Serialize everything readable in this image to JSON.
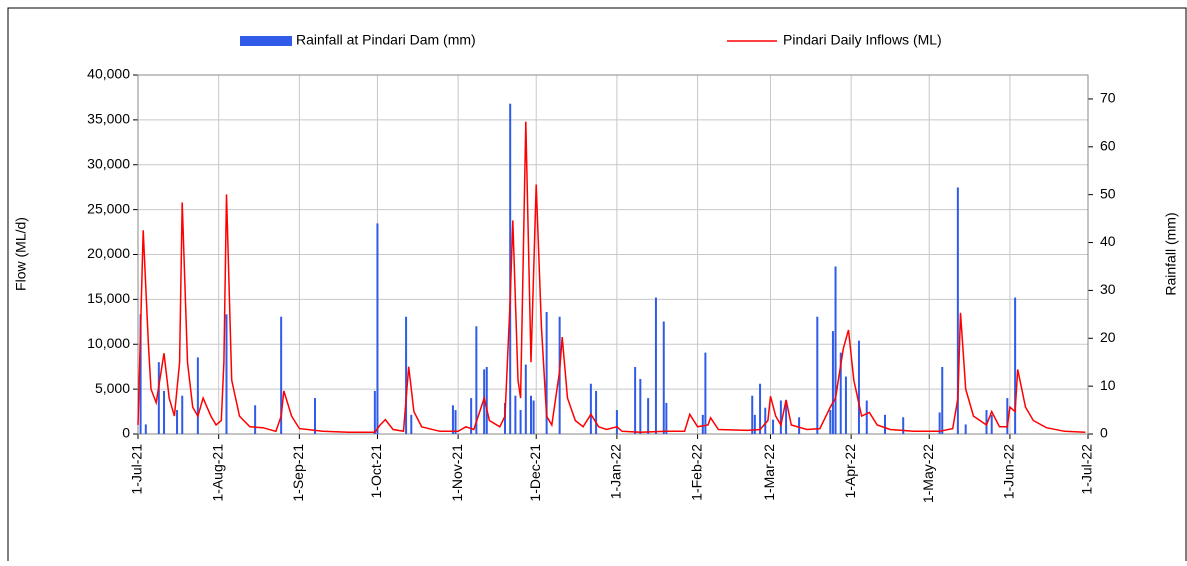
{
  "chart_data": {
    "type": "combo",
    "ylabel": "Flow (ML/d)",
    "y2label": "Rainfall (mm)",
    "ylim": [
      0,
      40000
    ],
    "yticks": [
      0,
      {
        "value": 5000,
        "label": "5,000"
      },
      {
        "value": 10000,
        "label": "10,000"
      },
      {
        "value": 15000,
        "label": "15,000"
      },
      {
        "value": 20000,
        "label": "20,000"
      },
      {
        "value": 25000,
        "label": "25,000"
      },
      {
        "value": 30000,
        "label": "30,000"
      },
      {
        "value": 35000,
        "label": "35,000"
      },
      {
        "value": 40000,
        "label": "40,000"
      }
    ],
    "y2lim": [
      0,
      75
    ],
    "y2ticks": [
      0,
      10,
      20,
      30,
      40,
      50,
      60,
      70
    ],
    "xlim": [
      "2021-07-01",
      "2022-07-01"
    ],
    "xticks": [
      {
        "value": "2021-07-01",
        "label": "1-Jul-21"
      },
      {
        "value": "2021-08-01",
        "label": "1-Aug-21"
      },
      {
        "value": "2021-09-01",
        "label": "1-Sep-21"
      },
      {
        "value": "2021-10-01",
        "label": "1-Oct-21"
      },
      {
        "value": "2021-11-01",
        "label": "1-Nov-21"
      },
      {
        "value": "2021-12-01",
        "label": "1-Dec-21"
      },
      {
        "value": "2022-01-01",
        "label": "1-Jan-22"
      },
      {
        "value": "2022-02-01",
        "label": "1-Feb-22"
      },
      {
        "value": "2022-03-01",
        "label": "1-Mar-22"
      },
      {
        "value": "2022-04-01",
        "label": "1-Apr-22"
      },
      {
        "value": "2022-05-01",
        "label": "1-May-22"
      },
      {
        "value": "2022-06-01",
        "label": "1-Jun-22"
      },
      {
        "value": "2022-07-01",
        "label": "1-Jul-22"
      }
    ],
    "grid": true,
    "legend": "top",
    "series": [
      {
        "name": "Rainfall at Pindari Dam (mm)",
        "type": "bar",
        "axis": "y2",
        "color": "#2f5be8",
        "x": [
          "2021-07-02",
          "2021-07-04",
          "2021-07-09",
          "2021-07-11",
          "2021-07-16",
          "2021-07-18",
          "2021-07-24",
          "2021-08-04",
          "2021-08-15",
          "2021-08-25",
          "2021-09-07",
          "2021-09-30",
          "2021-10-01",
          "2021-10-12",
          "2021-10-14",
          "2021-10-30",
          "2021-10-31",
          "2021-11-06",
          "2021-11-08",
          "2021-11-11",
          "2021-11-12",
          "2021-11-19",
          "2021-11-21",
          "2021-11-23",
          "2021-11-25",
          "2021-11-27",
          "2021-11-29",
          "2021-11-30",
          "2021-12-05",
          "2021-12-10",
          "2021-12-22",
          "2021-12-24",
          "2022-01-01",
          "2022-01-08",
          "2022-01-10",
          "2022-01-13",
          "2022-01-16",
          "2022-01-19",
          "2022-01-20",
          "2022-02-03",
          "2022-02-04",
          "2022-02-22",
          "2022-02-23",
          "2022-02-25",
          "2022-02-27",
          "2022-03-02",
          "2022-03-05",
          "2022-03-07",
          "2022-03-12",
          "2022-03-19",
          "2022-03-24",
          "2022-03-25",
          "2022-03-26",
          "2022-03-28",
          "2022-03-30",
          "2022-04-04",
          "2022-04-07",
          "2022-04-14",
          "2022-04-21",
          "2022-05-05",
          "2022-05-06",
          "2022-05-12",
          "2022-05-15",
          "2022-05-23",
          "2022-05-25",
          "2022-05-31",
          "2022-06-03"
        ],
        "values": [
          25,
          2,
          15,
          9,
          5,
          8,
          16,
          25,
          6,
          24.5,
          7.5,
          9,
          44,
          24.5,
          4,
          6,
          5,
          7.5,
          22.5,
          13.5,
          14,
          6.5,
          69,
          8,
          5,
          14.5,
          8,
          7,
          25.5,
          24.5,
          10.5,
          9,
          5,
          14,
          11.5,
          7.5,
          28.5,
          23.5,
          6.5,
          4,
          17,
          8,
          4,
          10.5,
          5.5,
          3,
          7,
          7,
          3.5,
          24.5,
          5,
          21.5,
          35,
          17,
          12,
          19.5,
          7,
          4,
          3.5,
          4.5,
          14,
          51.5,
          2,
          5,
          4,
          7.5,
          28.5
        ]
      },
      {
        "name": "Pindari Daily Inflows (ML)",
        "type": "line",
        "color": "#ff0000",
        "x": [
          "2021-07-01",
          "2021-07-03",
          "2021-07-05",
          "2021-07-06",
          "2021-07-08",
          "2021-07-11",
          "2021-07-13",
          "2021-07-15",
          "2021-07-17",
          "2021-07-18",
          "2021-07-20",
          "2021-07-22",
          "2021-07-24",
          "2021-07-26",
          "2021-07-29",
          "2021-07-31",
          "2021-08-02",
          "2021-08-03",
          "2021-08-04",
          "2021-08-06",
          "2021-08-09",
          "2021-08-13",
          "2021-08-18",
          "2021-08-23",
          "2021-08-25",
          "2021-08-26",
          "2021-08-29",
          "2021-09-01",
          "2021-09-10",
          "2021-09-20",
          "2021-09-30",
          "2021-10-02",
          "2021-10-04",
          "2021-10-07",
          "2021-10-11",
          "2021-10-13",
          "2021-10-15",
          "2021-10-18",
          "2021-10-25",
          "2021-11-01",
          "2021-11-04",
          "2021-11-07",
          "2021-11-11",
          "2021-11-13",
          "2021-11-17",
          "2021-11-19",
          "2021-11-21",
          "2021-11-22",
          "2021-11-24",
          "2021-11-25",
          "2021-11-27",
          "2021-11-29",
          "2021-12-01",
          "2021-12-03",
          "2021-12-05",
          "2021-12-07",
          "2021-12-10",
          "2021-12-11",
          "2021-12-13",
          "2021-12-16",
          "2021-12-19",
          "2021-12-22",
          "2021-12-25",
          "2021-12-28",
          "2022-01-01",
          "2022-01-03",
          "2022-01-10",
          "2022-01-20",
          "2022-01-27",
          "2022-01-29",
          "2022-02-01",
          "2022-02-05",
          "2022-02-06",
          "2022-02-09",
          "2022-02-20",
          "2022-02-25",
          "2022-02-28",
          "2022-03-01",
          "2022-03-03",
          "2022-03-05",
          "2022-03-07",
          "2022-03-09",
          "2022-03-15",
          "2022-03-20",
          "2022-03-24",
          "2022-03-26",
          "2022-03-29",
          "2022-03-31",
          "2022-04-02",
          "2022-04-05",
          "2022-04-08",
          "2022-04-11",
          "2022-04-16",
          "2022-04-25",
          "2022-05-05",
          "2022-05-10",
          "2022-05-12",
          "2022-05-13",
          "2022-05-15",
          "2022-05-18",
          "2022-05-23",
          "2022-05-25",
          "2022-05-28",
          "2022-05-31",
          "2022-06-01",
          "2022-06-03",
          "2022-06-04",
          "2022-06-07",
          "2022-06-10",
          "2022-06-15",
          "2022-06-22",
          "2022-06-30"
        ],
        "values": [
          1000,
          22700,
          10000,
          5000,
          3500,
          9000,
          4000,
          2000,
          8000,
          25800,
          8000,
          3000,
          2000,
          4000,
          2000,
          1000,
          1500,
          8000,
          26700,
          6000,
          2000,
          800,
          700,
          300,
          2000,
          4800,
          2000,
          600,
          300,
          200,
          200,
          1000,
          1600,
          500,
          300,
          7500,
          2500,
          800,
          300,
          300,
          800,
          500,
          4000,
          1500,
          800,
          2000,
          15000,
          23800,
          6000,
          4000,
          34800,
          8000,
          27800,
          12000,
          2000,
          1000,
          7000,
          10800,
          4000,
          1500,
          800,
          2200,
          800,
          500,
          800,
          300,
          200,
          300,
          300,
          2200,
          800,
          1000,
          1800,
          500,
          400,
          500,
          1500,
          4200,
          2000,
          1000,
          3800,
          1000,
          500,
          600,
          3000,
          4000,
          9500,
          11600,
          6000,
          2000,
          2400,
          1000,
          500,
          300,
          300,
          600,
          4000,
          13500,
          5000,
          2000,
          1000,
          2500,
          800,
          800,
          3000,
          2500,
          7200,
          3000,
          1500,
          700,
          300,
          200
        ]
      }
    ]
  }
}
